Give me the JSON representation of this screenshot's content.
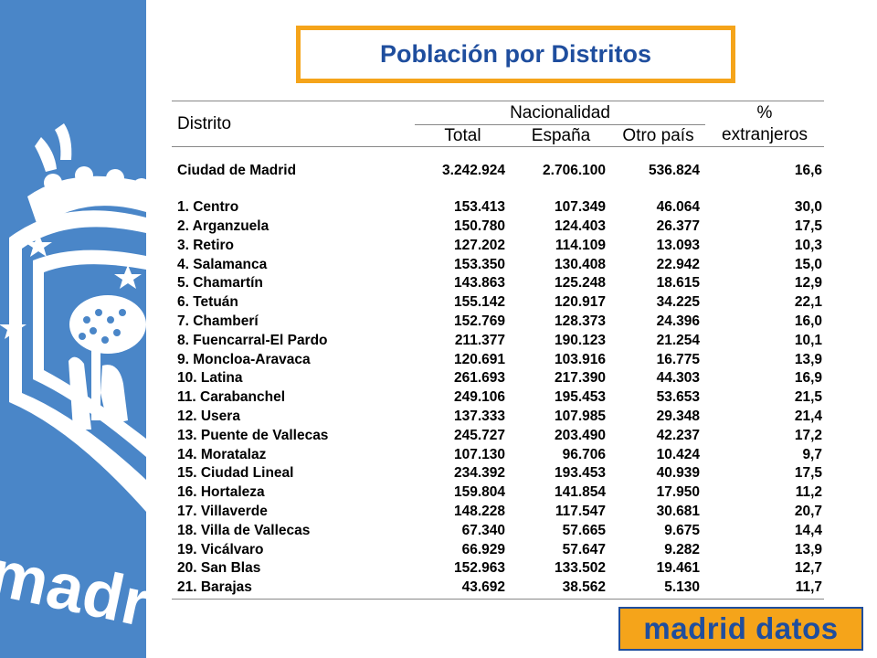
{
  "title": "Población por Distritos",
  "table": {
    "header_distrito": "Distrito",
    "header_nacionalidad": "Nacionalidad",
    "header_total": "Total",
    "header_espana": "España",
    "header_otro": "Otro país",
    "header_pct_line1": "%",
    "header_pct_line2": "extranjeros",
    "summary": {
      "name": "Ciudad de Madrid",
      "total": "3.242.924",
      "espana": "2.706.100",
      "otro": "536.824",
      "pct": "16,6"
    },
    "rows": [
      {
        "name": "1. Centro",
        "total": "153.413",
        "espana": "107.349",
        "otro": "46.064",
        "pct": "30,0"
      },
      {
        "name": "2. Arganzuela",
        "total": "150.780",
        "espana": "124.403",
        "otro": "26.377",
        "pct": "17,5"
      },
      {
        "name": "3. Retiro",
        "total": "127.202",
        "espana": "114.109",
        "otro": "13.093",
        "pct": "10,3"
      },
      {
        "name": "4. Salamanca",
        "total": "153.350",
        "espana": "130.408",
        "otro": "22.942",
        "pct": "15,0"
      },
      {
        "name": "5. Chamartín",
        "total": "143.863",
        "espana": "125.248",
        "otro": "18.615",
        "pct": "12,9"
      },
      {
        "name": "6. Tetuán",
        "total": "155.142",
        "espana": "120.917",
        "otro": "34.225",
        "pct": "22,1"
      },
      {
        "name": "7. Chamberí",
        "total": "152.769",
        "espana": "128.373",
        "otro": "24.396",
        "pct": "16,0"
      },
      {
        "name": "8. Fuencarral-El Pardo",
        "total": "211.377",
        "espana": "190.123",
        "otro": "21.254",
        "pct": "10,1"
      },
      {
        "name": "9. Moncloa-Aravaca",
        "total": "120.691",
        "espana": "103.916",
        "otro": "16.775",
        "pct": "13,9"
      },
      {
        "name": "10. Latina",
        "total": "261.693",
        "espana": "217.390",
        "otro": "44.303",
        "pct": "16,9"
      },
      {
        "name": "11. Carabanchel",
        "total": "249.106",
        "espana": "195.453",
        "otro": "53.653",
        "pct": "21,5"
      },
      {
        "name": "12. Usera",
        "total": "137.333",
        "espana": "107.985",
        "otro": "29.348",
        "pct": "21,4"
      },
      {
        "name": "13.  Puente de Vallecas",
        "total": "245.727",
        "espana": "203.490",
        "otro": "42.237",
        "pct": "17,2"
      },
      {
        "name": "14. Moratalaz",
        "total": "107.130",
        "espana": "96.706",
        "otro": "10.424",
        "pct": "9,7"
      },
      {
        "name": "15. Ciudad Lineal",
        "total": "234.392",
        "espana": "193.453",
        "otro": "40.939",
        "pct": "17,5"
      },
      {
        "name": "16. Hortaleza",
        "total": "159.804",
        "espana": "141.854",
        "otro": "17.950",
        "pct": "11,2"
      },
      {
        "name": "17. Villaverde",
        "total": "148.228",
        "espana": "117.547",
        "otro": "30.681",
        "pct": "20,7"
      },
      {
        "name": "18. Villa de Vallecas",
        "total": "67.340",
        "espana": "57.665",
        "otro": "9.675",
        "pct": "14,4"
      },
      {
        "name": "19. Vicálvaro",
        "total": "66.929",
        "espana": "57.647",
        "otro": "9.282",
        "pct": "13,9"
      },
      {
        "name": "20. San Blas",
        "total": "152.963",
        "espana": "133.502",
        "otro": "19.461",
        "pct": "12,7"
      },
      {
        "name": "21. Barajas",
        "total": "43.692",
        "espana": "38.562",
        "otro": "5.130",
        "pct": "11,7"
      }
    ]
  },
  "side_logo_text": "madrid",
  "brand_logo_text": "madrid datos",
  "colors": {
    "side_blue": "#4a86c8",
    "title_border": "#f5a41a",
    "title_text": "#1f4e9e",
    "logo_bg": "#f5a41a",
    "logo_text": "#1f4e9e"
  }
}
